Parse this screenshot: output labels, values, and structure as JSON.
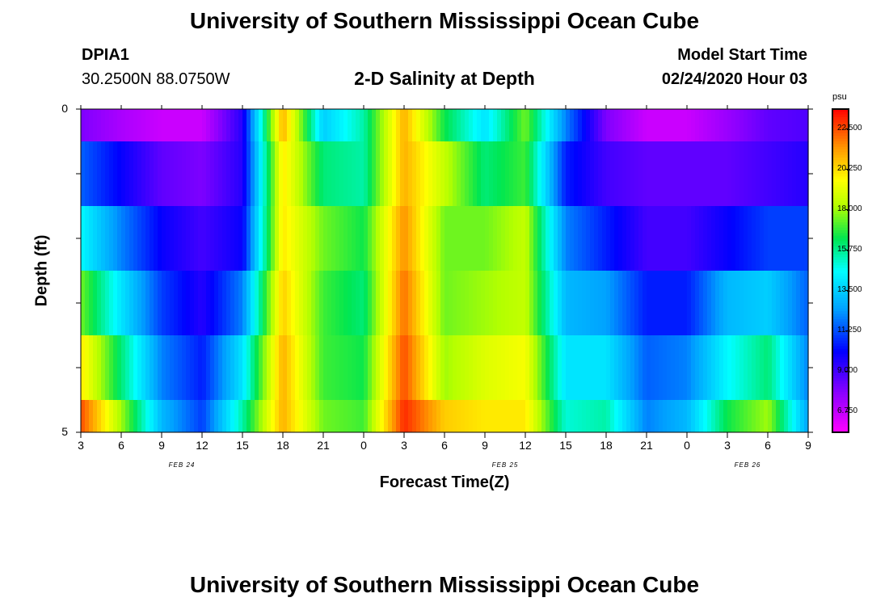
{
  "header": {
    "title": "University of Southern Mississippi Ocean Cube",
    "station": "DPIA1",
    "coords": "30.2500N 88.0750W",
    "subtitle": "2-D Salinity at Depth",
    "model_label": "Model Start Time",
    "model_time": "02/24/2020 Hour 03"
  },
  "footer": {
    "title": "University of Southern Mississippi Ocean Cube"
  },
  "chart_data": {
    "type": "heatmap",
    "title": "2-D Salinity at Depth",
    "xlabel": "Forecast Time(Z)",
    "ylabel": "Depth (ft)",
    "x_tick_labels": [
      "3",
      "6",
      "9",
      "12",
      "15",
      "18",
      "21",
      "0",
      "3",
      "6",
      "9",
      "12",
      "15",
      "18",
      "21",
      "0",
      "3",
      "6",
      "9"
    ],
    "date_labels": [
      {
        "text": "FEB 24",
        "at_tick": 2.5
      },
      {
        "text": "FEB 25",
        "at_tick": 10.5
      },
      {
        "text": "FEB 26",
        "at_tick": 16.5
      }
    ],
    "y_tick_labels": [
      {
        "value": 0,
        "text": "0"
      },
      {
        "value": 1,
        "text": ""
      },
      {
        "value": 2,
        "text": ""
      },
      {
        "value": 3,
        "text": ""
      },
      {
        "value": 4,
        "text": ""
      },
      {
        "value": 5,
        "text": "5"
      }
    ],
    "ylim": [
      0,
      5
    ],
    "colorbar": {
      "unit": "psu",
      "labels": [
        "22.500",
        "20.250",
        "18.000",
        "15.750",
        "13.500",
        "11.250",
        "9.000",
        "6.750"
      ],
      "vmin": 5.6,
      "vmax": 23.6
    },
    "depth_rows": [
      "0-0.5",
      "0.5-1.5",
      "1.5-2.5",
      "2.5-3.5",
      "3.5-4.5",
      "4.5-5"
    ],
    "time_hours": [
      3,
      6,
      9,
      12,
      15,
      18,
      21,
      24,
      27,
      30,
      33,
      36,
      39,
      42,
      45,
      48,
      51,
      54,
      57
    ],
    "values": [
      [
        8.0,
        7.2,
        6.6,
        6.6,
        9.5,
        21.0,
        13.5,
        15.5,
        21.0,
        16.5,
        14.0,
        17.5,
        12.0,
        8.0,
        6.6,
        6.6,
        7.5,
        8.5,
        8.8
      ],
      [
        11.5,
        10.0,
        8.5,
        8.0,
        9.5,
        20.0,
        16.0,
        15.5,
        21.0,
        18.5,
        16.0,
        17.0,
        10.5,
        9.0,
        8.5,
        8.5,
        8.5,
        9.0,
        9.5
      ],
      [
        14.5,
        12.0,
        10.0,
        9.0,
        10.0,
        20.0,
        17.5,
        16.5,
        21.5,
        17.5,
        17.5,
        18.5,
        12.0,
        10.5,
        9.0,
        9.0,
        10.0,
        11.0,
        11.0
      ],
      [
        17.5,
        14.0,
        11.0,
        9.5,
        12.0,
        20.5,
        17.0,
        16.0,
        22.0,
        17.5,
        18.0,
        18.5,
        13.0,
        12.5,
        10.5,
        10.5,
        13.0,
        13.5,
        11.5
      ],
      [
        20.0,
        16.0,
        12.0,
        10.5,
        14.0,
        21.0,
        17.0,
        16.5,
        22.5,
        18.0,
        19.0,
        19.5,
        14.0,
        14.0,
        11.5,
        12.0,
        14.5,
        16.0,
        12.0
      ],
      [
        22.5,
        18.0,
        13.0,
        11.0,
        15.5,
        21.0,
        17.5,
        17.0,
        23.0,
        20.5,
        20.0,
        20.0,
        15.0,
        15.5,
        12.0,
        13.0,
        16.5,
        18.0,
        12.5
      ]
    ]
  }
}
